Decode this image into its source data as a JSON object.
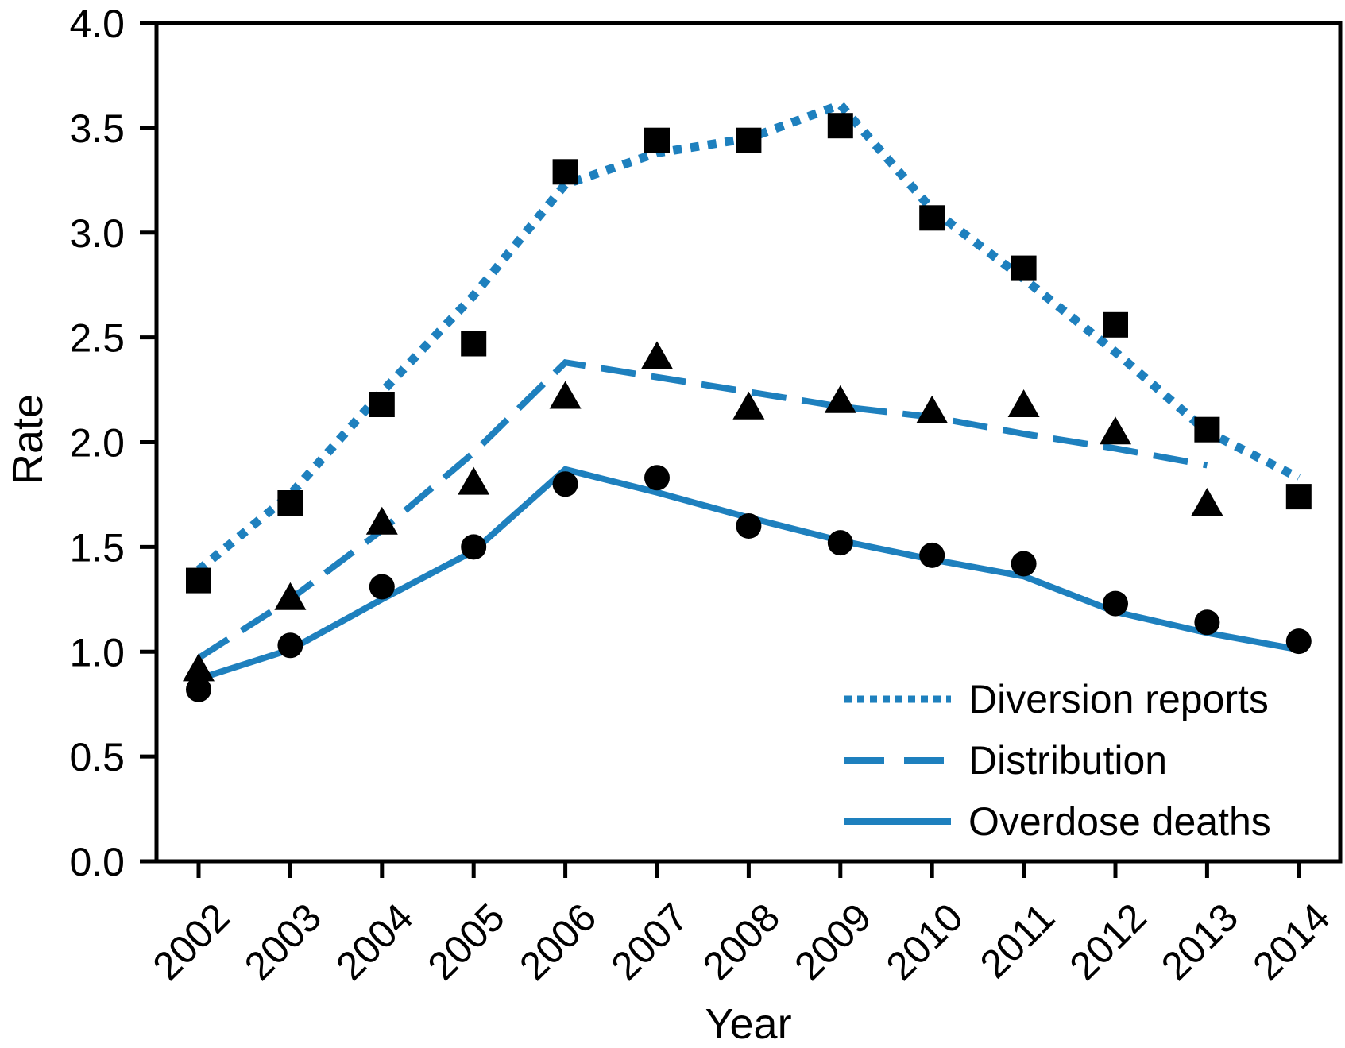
{
  "chart_data": {
    "type": "line",
    "title": "",
    "xlabel": "Year",
    "ylabel": "Rate",
    "x_ticklabels": [
      "2002",
      "2003",
      "2004",
      "2005",
      "2006",
      "2007",
      "2008",
      "2009",
      "2010",
      "2011",
      "2012",
      "2013",
      "2014"
    ],
    "y_ticklabels": [
      "0.0",
      "0.5",
      "1.0",
      "1.5",
      "2.0",
      "2.5",
      "3.0",
      "3.5",
      "4.0"
    ],
    "ylim": [
      0.0,
      4.0
    ],
    "grid": "off",
    "legend_position": "lower right inside",
    "accent_color": "#1e80be",
    "marker_color": "#000000",
    "axis_color": "#000000",
    "series": [
      {
        "name": "Diversion reports",
        "line_style": "dotted",
        "marker": "square",
        "marker_values": [
          1.34,
          1.71,
          2.18,
          2.47,
          3.29,
          3.44,
          3.44,
          3.51,
          3.07,
          2.83,
          2.56,
          2.06,
          1.74
        ],
        "line_values": [
          1.39,
          1.75,
          2.24,
          2.7,
          3.23,
          3.38,
          3.45,
          3.61,
          3.11,
          2.78,
          2.43,
          2.05,
          1.83
        ]
      },
      {
        "name": "Distribution",
        "line_style": "dashed",
        "marker": "triangle",
        "marker_values": [
          0.92,
          1.26,
          1.62,
          1.81,
          2.22,
          2.41,
          2.17,
          2.2,
          2.15,
          2.18,
          2.05,
          1.71,
          null
        ],
        "line_values": [
          0.97,
          1.25,
          1.58,
          1.95,
          2.38,
          2.31,
          2.24,
          2.17,
          2.12,
          2.04,
          1.97,
          1.89,
          null
        ]
      },
      {
        "name": "Overdose deaths",
        "line_style": "solid",
        "marker": "circle",
        "marker_values": [
          0.82,
          1.03,
          1.31,
          1.5,
          1.8,
          1.83,
          1.6,
          1.52,
          1.46,
          1.42,
          1.23,
          1.14,
          1.05
        ],
        "line_values": [
          0.87,
          1.01,
          1.25,
          1.48,
          1.87,
          1.76,
          1.64,
          1.53,
          1.44,
          1.36,
          1.19,
          1.09,
          1.01
        ]
      }
    ]
  }
}
